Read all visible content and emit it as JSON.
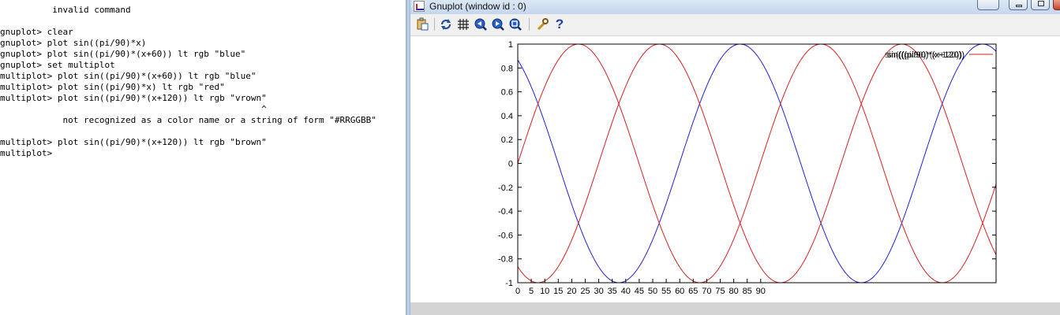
{
  "console": {
    "lines": [
      "          invalid command",
      "",
      "gnuplot> clear",
      "gnuplot> plot sin((pi/90)*x)",
      "gnuplot> plot sin((pi/90)*(x+60)) lt rgb \"blue\"",
      "gnuplot> set multiplot",
      "multiplot> plot sin((pi/90)*(x+60)) lt rgb \"blue\"",
      "multiplot> plot sin((pi/90)*x) lt rgb \"red\"",
      "multiplot> plot sin((pi/90)*(x+120)) lt rgb \"vrown\"",
      "                                                  ^",
      "            not recognized as a color name or a string of form \"#RRGGBB\"",
      "",
      "multiplot> plot sin((pi/90)*(x+120)) lt rgb \"brown\"",
      "multiplot>"
    ]
  },
  "window": {
    "title": "Gnuplot (window id : 0)"
  },
  "toolbar": {
    "buttons": [
      {
        "icon": "clipboard-copy-icon",
        "glyph": "📋"
      },
      {
        "icon": "replot-icon",
        "glyph": "⟳"
      },
      {
        "icon": "grid-icon",
        "glyph": "#"
      },
      {
        "icon": "zoom-previous-icon",
        "glyph": "◀"
      },
      {
        "icon": "zoom-next-icon",
        "glyph": "▶"
      },
      {
        "icon": "autoscale-icon",
        "glyph": "⌕"
      },
      {
        "icon": "options-icon",
        "glyph": "🔧"
      },
      {
        "icon": "help-icon",
        "glyph": "?"
      }
    ]
  },
  "colors": {
    "series_blue": "#1f1fd6",
    "series_red": "#d62020",
    "legend_line": "#d62020",
    "frame": "#000000"
  },
  "chart_data": {
    "type": "line",
    "x_domain": [
      -10,
      10
    ],
    "ylim": [
      -1,
      1
    ],
    "yticks": [
      "1",
      "0.8",
      "0.6",
      "0.4",
      "0.2",
      "0",
      "-0.2",
      "-0.4",
      "-0.6",
      "-0.8",
      "-1"
    ],
    "xticks": [
      "0",
      "5",
      "10",
      "15",
      "20",
      "25",
      "30",
      "35",
      "40",
      "45",
      "50",
      "55",
      "60",
      "65",
      "70",
      "75",
      "80",
      "85",
      "90"
    ],
    "legend_text": "sin(((pi/90)*(x+120))",
    "legend_position": "top-right",
    "series": [
      {
        "expr": "sin(pi/90*(x+60))",
        "color": "#1f1fd6",
        "period": 180,
        "phase": 60
      },
      {
        "expr": "sin(pi/90*x)",
        "color": "#d62020",
        "period": 180,
        "phase": 0
      },
      {
        "expr": "sin(pi/90*(x+120))",
        "color": "#d62020",
        "period": 180,
        "phase": 120
      }
    ]
  }
}
